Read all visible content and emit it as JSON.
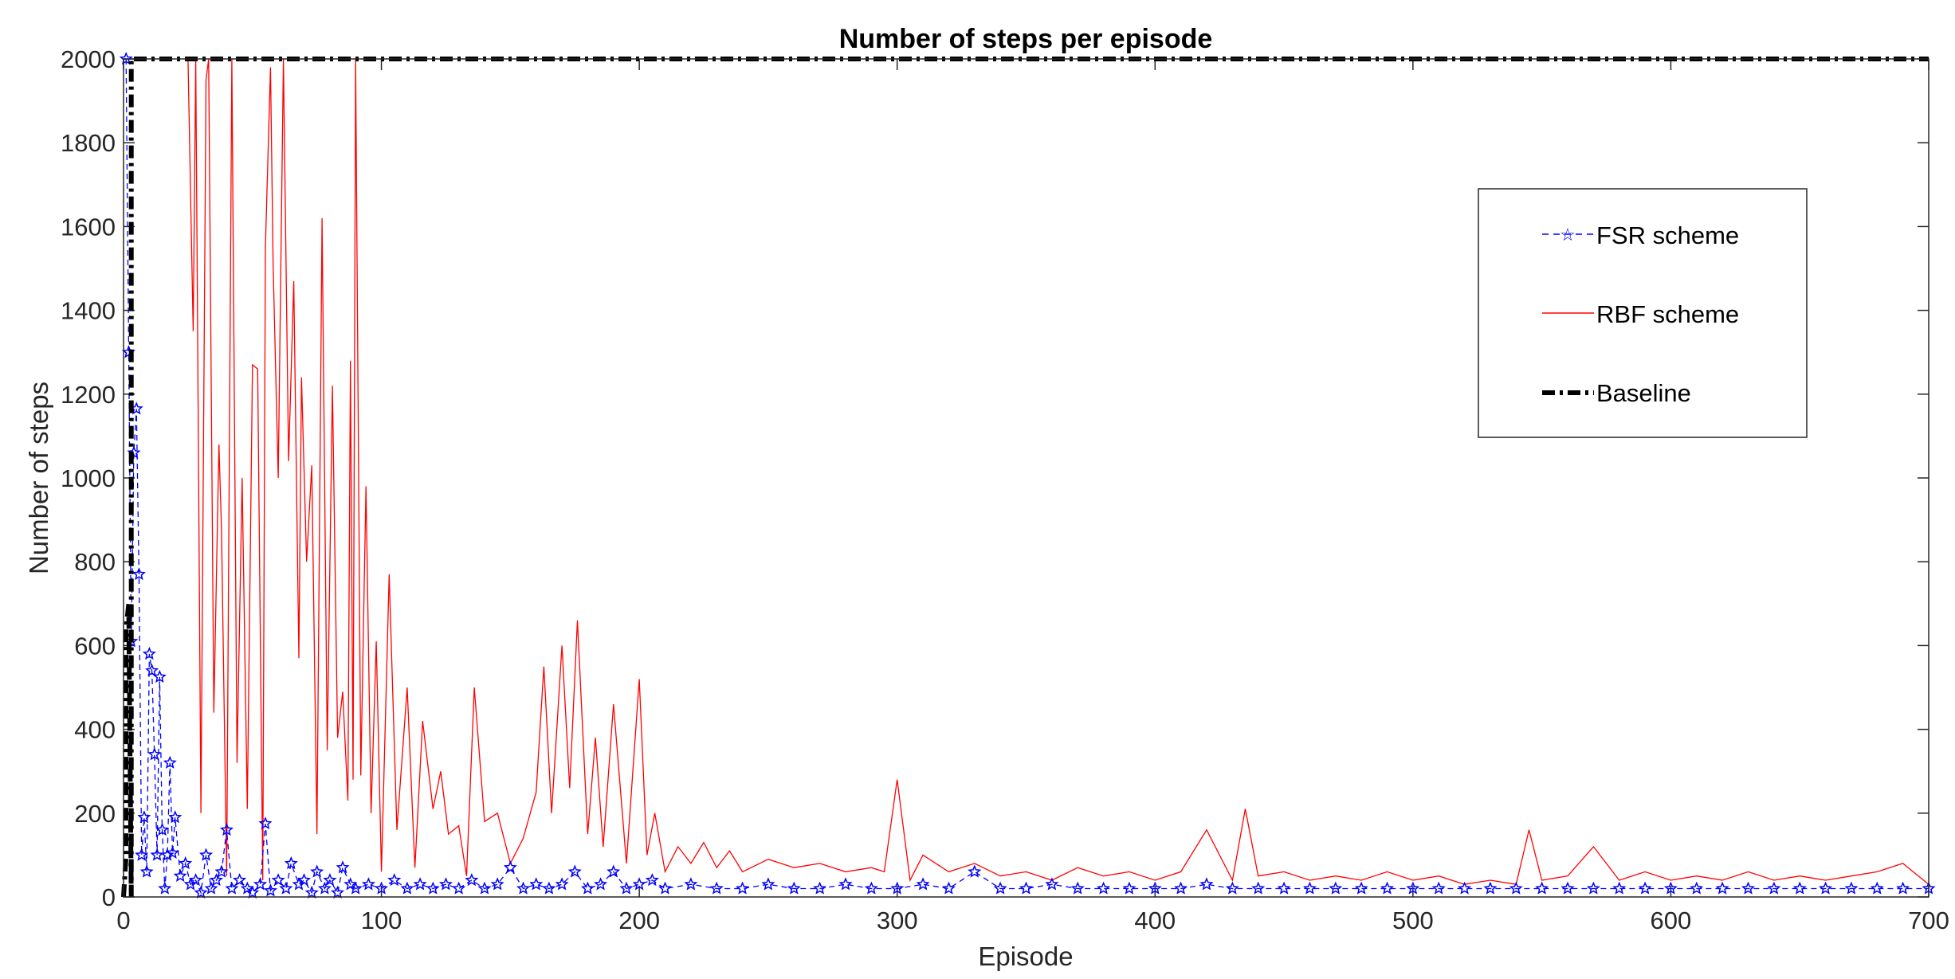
{
  "chart_data": {
    "type": "line",
    "title": "Number of steps per episode",
    "xlabel": "Episode",
    "ylabel": "Number of steps",
    "xlim": [
      0,
      700
    ],
    "ylim": [
      0,
      2000
    ],
    "xticks": [
      0,
      100,
      200,
      300,
      400,
      500,
      600,
      700
    ],
    "yticks": [
      0,
      200,
      400,
      600,
      800,
      1000,
      1200,
      1400,
      1600,
      1800,
      2000
    ],
    "legend_position": "top-right",
    "series": [
      {
        "name": "FSR scheme",
        "color": "#0000ff",
        "style": "dashed-star",
        "x": [
          1,
          2,
          3,
          4,
          5,
          6,
          7,
          8,
          9,
          10,
          11,
          12,
          13,
          14,
          15,
          16,
          17,
          18,
          19,
          20,
          22,
          24,
          26,
          28,
          30,
          32,
          34,
          36,
          38,
          40,
          42,
          45,
          48,
          50,
          53,
          55,
          57,
          60,
          63,
          65,
          68,
          70,
          73,
          75,
          78,
          80,
          83,
          85,
          88,
          90,
          95,
          100,
          105,
          110,
          115,
          120,
          125,
          130,
          135,
          140,
          145,
          150,
          155,
          160,
          165,
          170,
          175,
          180,
          185,
          190,
          195,
          200,
          205,
          210,
          220,
          230,
          240,
          250,
          260,
          270,
          280,
          290,
          300,
          310,
          320,
          330,
          340,
          350,
          360,
          370,
          380,
          390,
          400,
          410,
          420,
          430,
          440,
          450,
          460,
          470,
          480,
          490,
          500,
          510,
          520,
          530,
          540,
          550,
          560,
          570,
          580,
          590,
          600,
          610,
          620,
          630,
          640,
          650,
          660,
          670,
          680,
          690,
          700
        ],
        "y": [
          2000,
          1300,
          610,
          1060,
          1165,
          770,
          100,
          190,
          60,
          580,
          540,
          340,
          100,
          525,
          160,
          20,
          100,
          320,
          105,
          190,
          50,
          80,
          30,
          40,
          10,
          100,
          20,
          40,
          60,
          160,
          20,
          40,
          20,
          10,
          30,
          175,
          15,
          40,
          20,
          80,
          30,
          40,
          10,
          60,
          20,
          40,
          10,
          70,
          30,
          20,
          30,
          20,
          40,
          20,
          30,
          20,
          30,
          20,
          40,
          20,
          30,
          70,
          20,
          30,
          20,
          30,
          60,
          20,
          30,
          60,
          20,
          30,
          40,
          20,
          30,
          20,
          20,
          30,
          20,
          20,
          30,
          20,
          20,
          30,
          20,
          60,
          20,
          20,
          30,
          20,
          20,
          20,
          20,
          20,
          30,
          20,
          20,
          20,
          20,
          20,
          20,
          20,
          20,
          20,
          20,
          20,
          20,
          20,
          20,
          20,
          20,
          20,
          20,
          20,
          20,
          20,
          20,
          20,
          20,
          20,
          20,
          20,
          20
        ]
      },
      {
        "name": "RBF scheme",
        "color": "#ff0000",
        "style": "solid",
        "x": [
          25,
          27,
          28,
          30,
          32,
          33,
          35,
          37,
          38,
          40,
          42,
          44,
          46,
          48,
          50,
          52,
          54,
          55,
          57,
          58,
          60,
          62,
          64,
          66,
          68,
          69,
          71,
          73,
          75,
          77,
          79,
          81,
          83,
          85,
          87,
          88,
          89,
          90,
          92,
          94,
          96,
          98,
          100,
          103,
          106,
          110,
          113,
          116,
          120,
          123,
          126,
          130,
          133,
          136,
          140,
          145,
          150,
          155,
          160,
          163,
          166,
          170,
          173,
          176,
          180,
          183,
          186,
          190,
          195,
          200,
          203,
          206,
          210,
          215,
          220,
          225,
          230,
          235,
          240,
          250,
          260,
          270,
          280,
          290,
          295,
          300,
          305,
          310,
          320,
          330,
          340,
          350,
          360,
          370,
          380,
          390,
          400,
          410,
          420,
          430,
          435,
          440,
          450,
          460,
          470,
          480,
          490,
          500,
          510,
          520,
          530,
          540,
          545,
          550,
          560,
          570,
          580,
          590,
          600,
          610,
          620,
          630,
          640,
          650,
          660,
          670,
          680,
          690,
          700
        ],
        "y": [
          2000,
          1350,
          2000,
          200,
          1950,
          2000,
          440,
          1080,
          870,
          50,
          2000,
          320,
          1000,
          210,
          1270,
          1260,
          40,
          1550,
          1980,
          1510,
          1000,
          2000,
          1040,
          1470,
          570,
          1240,
          800,
          1030,
          150,
          1620,
          350,
          1220,
          380,
          490,
          230,
          1280,
          280,
          2000,
          290,
          980,
          200,
          610,
          60,
          770,
          160,
          500,
          70,
          420,
          210,
          300,
          150,
          170,
          50,
          500,
          180,
          200,
          80,
          140,
          250,
          550,
          200,
          600,
          260,
          660,
          150,
          380,
          120,
          460,
          80,
          520,
          100,
          200,
          60,
          120,
          80,
          130,
          70,
          110,
          60,
          90,
          70,
          80,
          60,
          70,
          60,
          280,
          40,
          100,
          60,
          80,
          50,
          60,
          40,
          70,
          50,
          60,
          40,
          60,
          160,
          40,
          210,
          50,
          60,
          40,
          50,
          40,
          60,
          40,
          50,
          30,
          40,
          30,
          160,
          40,
          50,
          120,
          40,
          60,
          40,
          50,
          40,
          60,
          40,
          50,
          40,
          50,
          60,
          80,
          30
        ]
      },
      {
        "name": "Baseline",
        "color": "#000000",
        "style": "thick-dashdot",
        "x": [
          0,
          1,
          1,
          2,
          3,
          3,
          700
        ],
        "y": [
          0,
          100,
          640,
          700,
          0,
          2000,
          2000
        ]
      }
    ]
  }
}
